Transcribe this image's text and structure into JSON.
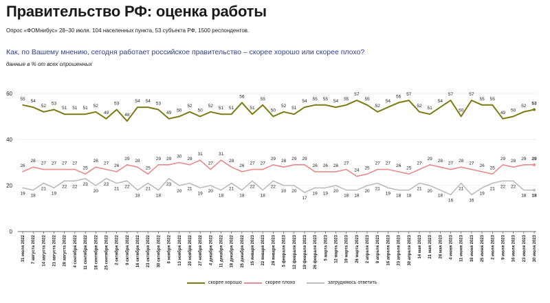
{
  "header": {
    "title": "Правительство РФ: оценка работы",
    "subtitle": "Опрос «ФОМнибус» 28–30 июля. 104 населенных пункта, 53 субъекта РФ, 1500 респондентов.",
    "question": "Как, по Вашему мнению, сегодня работает российское правительство – скорее хорошо или скорее плохо?",
    "note": "данные в % от всех опрошенных"
  },
  "chart_data": {
    "type": "line",
    "ylim": [
      0,
      60
    ],
    "yticks": [
      "0",
      "20",
      "40",
      "60"
    ],
    "grid": true,
    "legend_position": "bottom",
    "categories": [
      "31 июля 2022",
      "7 августа 2022",
      "14 августа 2022",
      "21 августа 2022",
      "28 августа 2022",
      "4 сентября 2022",
      "11 сентября 2022",
      "18 сентября 2022",
      "25 сентября 2022",
      "2 октября 2022",
      "9 октября 2022",
      "16 октября 2022",
      "23 октября 2022",
      "30 октября 2022",
      "6 ноября 2022",
      "13 ноября 2022",
      "20 ноября 2022",
      "27 ноября 2022",
      "4 декабря 2022",
      "11 декабря 2022",
      "18 декабря 2022",
      "25 декабря 2022",
      "15 января 2023",
      "22 января 2023",
      "29 января 2023",
      "5 февраля 2023",
      "12 февраля 2023",
      "19 февраля 2023",
      "26 февраля 2023",
      "5 марта 2023",
      "12 марта 2023",
      "19 марта 2023",
      "26 марта 2023",
      "2 апреля 2023",
      "9 апреля 2023",
      "16 апреля 2023",
      "23 апреля 2023",
      "30 апреля 2023",
      "14 мая 2023",
      "21 мая 2023",
      "28 мая 2023",
      "4 июня 2023",
      "11 июня 2023",
      "18 июня 2023",
      "25 июня 2023",
      "2 июля 2023",
      "9 июля 2023",
      "16 июля 2023",
      "23 июля 2023",
      "30 июля 2023"
    ],
    "series": [
      {
        "name": "скорее хорошо",
        "color": "#7a7a10",
        "values": [
          55,
          54,
          52,
          53,
          51,
          51,
          51,
          52,
          49,
          53,
          48,
          54,
          54,
          53,
          49,
          50,
          52,
          50,
          52,
          51,
          51,
          56,
          51,
          55,
          50,
          52,
          51,
          54,
          55,
          55,
          54,
          55,
          57,
          55,
          52,
          54,
          56,
          57,
          52,
          51,
          54,
          57,
          50,
          57,
          55,
          55,
          49,
          50,
          52,
          53
        ]
      },
      {
        "name": "скорее плохо",
        "color": "#e88a8a",
        "values": [
          26,
          28,
          27,
          27,
          27,
          27,
          25,
          28,
          27,
          26,
          29,
          28,
          25,
          29,
          29,
          30,
          29,
          31,
          27,
          31,
          28,
          26,
          27,
          27,
          29,
          28,
          29,
          29,
          26,
          26,
          26,
          27,
          24,
          25,
          27,
          27,
          26,
          25,
          27,
          29,
          28,
          27,
          28,
          27,
          26,
          25,
          29,
          28,
          29,
          29
        ]
      },
      {
        "name": "затрудняюсь ответить",
        "color": "#bbbbbb",
        "values": [
          19,
          18,
          21,
          19,
          22,
          22,
          23,
          20,
          23,
          21,
          22,
          18,
          21,
          18,
          23,
          20,
          21,
          19,
          20,
          18,
          21,
          18,
          22,
          18,
          22,
          20,
          20,
          17,
          19,
          19,
          20,
          18,
          18,
          20,
          21,
          19,
          18,
          18,
          21,
          20,
          18,
          16,
          21,
          16,
          19,
          21,
          22,
          22,
          18,
          18
        ]
      }
    ]
  }
}
